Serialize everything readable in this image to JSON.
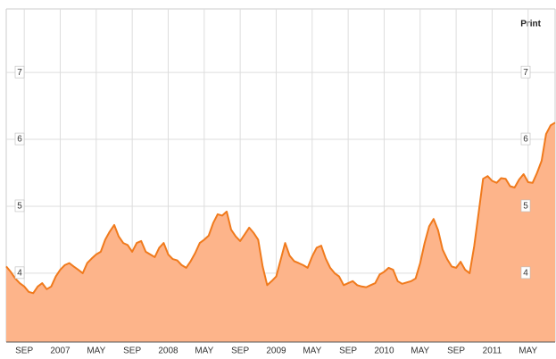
{
  "chart_data": {
    "type": "area",
    "action": "Print",
    "color": "#f07a1c",
    "fill": "#fdb48a",
    "xlim": [
      0,
      122
    ],
    "ylim": [
      2.97,
      7.95
    ],
    "yticks": [
      4,
      5,
      6,
      7
    ],
    "grid": true,
    "xticks": [
      {
        "value": 4,
        "label": "SEP"
      },
      {
        "value": 12,
        "label": "2007"
      },
      {
        "value": 20,
        "label": "MAY"
      },
      {
        "value": 28,
        "label": "SEP"
      },
      {
        "value": 36,
        "label": "2008"
      },
      {
        "value": 44,
        "label": "MAY"
      },
      {
        "value": 52,
        "label": "SEP"
      },
      {
        "value": 60,
        "label": "2009"
      },
      {
        "value": 68,
        "label": "MAY"
      },
      {
        "value": 76,
        "label": "SEP"
      },
      {
        "value": 84,
        "label": "2010"
      },
      {
        "value": 92,
        "label": "MAY"
      },
      {
        "value": 100,
        "label": "SEP"
      },
      {
        "value": 108,
        "label": "2011"
      },
      {
        "value": 116,
        "label": "MAY"
      }
    ],
    "values": [
      4.1,
      4.02,
      3.92,
      3.85,
      3.8,
      3.72,
      3.7,
      3.8,
      3.85,
      3.76,
      3.8,
      3.95,
      4.05,
      4.12,
      4.15,
      4.1,
      4.05,
      4.0,
      4.15,
      4.22,
      4.28,
      4.32,
      4.5,
      4.62,
      4.72,
      4.55,
      4.45,
      4.42,
      4.32,
      4.45,
      4.48,
      4.32,
      4.28,
      4.24,
      4.38,
      4.45,
      4.28,
      4.21,
      4.19,
      4.12,
      4.08,
      4.18,
      4.3,
      4.45,
      4.5,
      4.56,
      4.75,
      4.88,
      4.86,
      4.92,
      4.65,
      4.55,
      4.48,
      4.58,
      4.68,
      4.6,
      4.5,
      4.1,
      3.82,
      3.88,
      3.95,
      4.2,
      4.45,
      4.26,
      4.18,
      4.15,
      4.12,
      4.08,
      4.25,
      4.38,
      4.41,
      4.22,
      4.08,
      4.0,
      3.95,
      3.82,
      3.85,
      3.88,
      3.82,
      3.8,
      3.79,
      3.82,
      3.85,
      3.98,
      4.02,
      4.08,
      4.05,
      3.88,
      3.84,
      3.86,
      3.88,
      3.92,
      4.15,
      4.45,
      4.7,
      4.81,
      4.64,
      4.35,
      4.21,
      4.1,
      4.08,
      4.17,
      4.05,
      4.0,
      4.4,
      4.9,
      5.41,
      5.45,
      5.38,
      5.35,
      5.42,
      5.41,
      5.3,
      5.28,
      5.4,
      5.48,
      5.36,
      5.35,
      5.5,
      5.68,
      6.08,
      6.21,
      6.25
    ]
  }
}
